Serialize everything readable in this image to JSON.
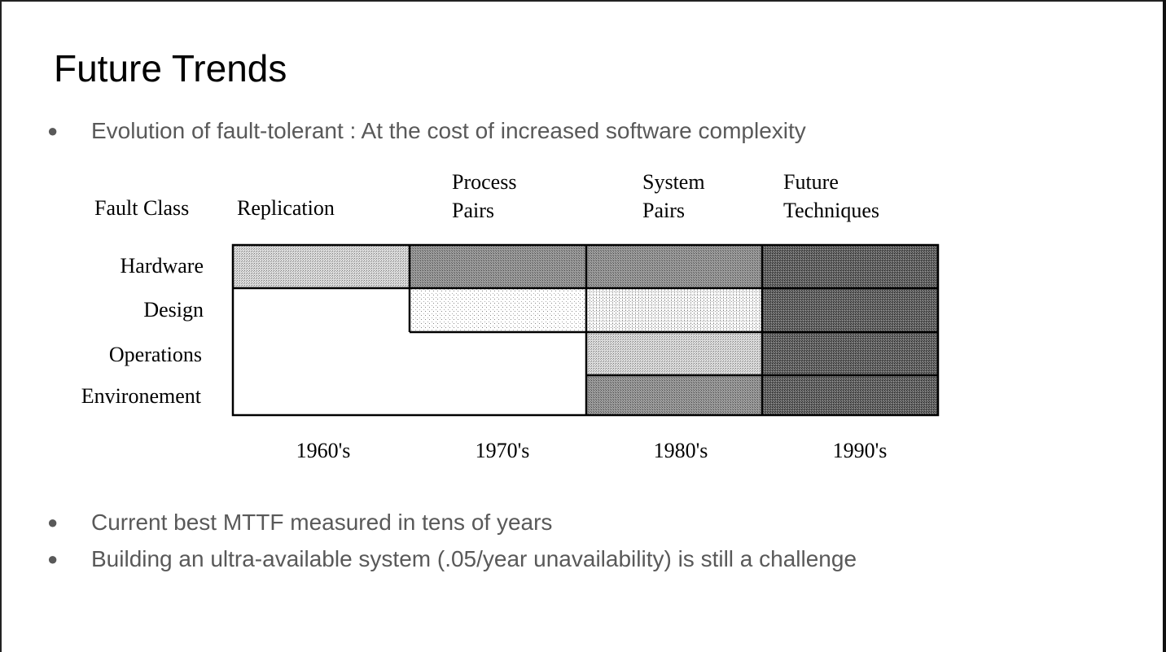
{
  "slide": {
    "title": "Future Trends",
    "bullets": [
      "Evolution of fault-tolerant : At the cost of increased software complexity",
      "Current best MTTF measured in tens of years",
      "Building an ultra-available system (.05/year unavailability)  is still a challenge"
    ],
    "bullet_glyph": "●"
  },
  "diagram": {
    "header": {
      "fault_class": "Fault Class",
      "techniques": [
        {
          "line1": "Replication",
          "line2": ""
        },
        {
          "line1": "Process",
          "line2": "Pairs"
        },
        {
          "line1": "System",
          "line2": "Pairs"
        },
        {
          "line1": "Future",
          "line2": "Techniques"
        }
      ]
    },
    "rows": [
      "Hardware",
      "Design",
      "Operations",
      "Environement"
    ],
    "decades": [
      "1960's",
      "1970's",
      "1980's",
      "1990's"
    ],
    "coverage": [
      [
        "light",
        "dark",
        "dark",
        "darkest"
      ],
      [
        "none",
        "dotted",
        "dotted-dense",
        "darkest"
      ],
      [
        "none",
        "none",
        "light",
        "darkest"
      ],
      [
        "none",
        "none",
        "dark",
        "darkest"
      ]
    ]
  }
}
